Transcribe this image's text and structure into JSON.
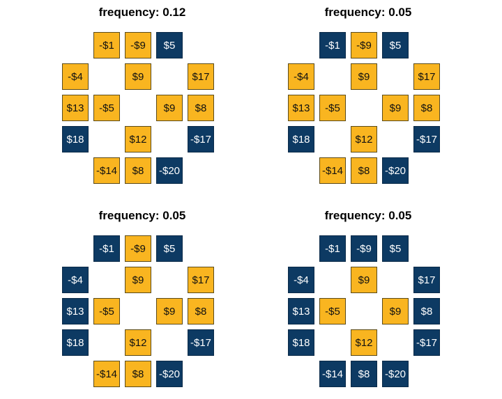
{
  "colors": {
    "yellow": "#f9b520",
    "blue": "#0d3a63"
  },
  "panels": [
    {
      "title": "frequency: 0.12",
      "cells": [
        {
          "row": 0,
          "col": 1,
          "label": "-$1",
          "color": "yellow"
        },
        {
          "row": 0,
          "col": 2,
          "label": "-$9",
          "color": "yellow"
        },
        {
          "row": 0,
          "col": 3,
          "label": "$5",
          "color": "blue"
        },
        {
          "row": 1,
          "col": 0,
          "label": "-$4",
          "color": "yellow"
        },
        {
          "row": 1,
          "col": 2,
          "label": "$9",
          "color": "yellow"
        },
        {
          "row": 1,
          "col": 4,
          "label": "$17",
          "color": "yellow"
        },
        {
          "row": 2,
          "col": 0,
          "label": "$13",
          "color": "yellow"
        },
        {
          "row": 2,
          "col": 1,
          "label": "-$5",
          "color": "yellow"
        },
        {
          "row": 2,
          "col": 3,
          "label": "$9",
          "color": "yellow"
        },
        {
          "row": 2,
          "col": 4,
          "label": "$8",
          "color": "yellow"
        },
        {
          "row": 3,
          "col": 0,
          "label": "$18",
          "color": "blue"
        },
        {
          "row": 3,
          "col": 2,
          "label": "$12",
          "color": "yellow"
        },
        {
          "row": 3,
          "col": 4,
          "label": "-$17",
          "color": "blue"
        },
        {
          "row": 4,
          "col": 1,
          "label": "-$14",
          "color": "yellow"
        },
        {
          "row": 4,
          "col": 2,
          "label": "$8",
          "color": "yellow"
        },
        {
          "row": 4,
          "col": 3,
          "label": "-$20",
          "color": "blue"
        }
      ]
    },
    {
      "title": "frequency: 0.05",
      "cells": [
        {
          "row": 0,
          "col": 1,
          "label": "-$1",
          "color": "blue"
        },
        {
          "row": 0,
          "col": 2,
          "label": "-$9",
          "color": "yellow"
        },
        {
          "row": 0,
          "col": 3,
          "label": "$5",
          "color": "blue"
        },
        {
          "row": 1,
          "col": 0,
          "label": "-$4",
          "color": "yellow"
        },
        {
          "row": 1,
          "col": 2,
          "label": "$9",
          "color": "yellow"
        },
        {
          "row": 1,
          "col": 4,
          "label": "$17",
          "color": "yellow"
        },
        {
          "row": 2,
          "col": 0,
          "label": "$13",
          "color": "yellow"
        },
        {
          "row": 2,
          "col": 1,
          "label": "-$5",
          "color": "yellow"
        },
        {
          "row": 2,
          "col": 3,
          "label": "$9",
          "color": "yellow"
        },
        {
          "row": 2,
          "col": 4,
          "label": "$8",
          "color": "yellow"
        },
        {
          "row": 3,
          "col": 0,
          "label": "$18",
          "color": "blue"
        },
        {
          "row": 3,
          "col": 2,
          "label": "$12",
          "color": "yellow"
        },
        {
          "row": 3,
          "col": 4,
          "label": "-$17",
          "color": "blue"
        },
        {
          "row": 4,
          "col": 1,
          "label": "-$14",
          "color": "yellow"
        },
        {
          "row": 4,
          "col": 2,
          "label": "$8",
          "color": "yellow"
        },
        {
          "row": 4,
          "col": 3,
          "label": "-$20",
          "color": "blue"
        }
      ]
    },
    {
      "title": "frequency: 0.05",
      "cells": [
        {
          "row": 0,
          "col": 1,
          "label": "-$1",
          "color": "blue"
        },
        {
          "row": 0,
          "col": 2,
          "label": "-$9",
          "color": "yellow"
        },
        {
          "row": 0,
          "col": 3,
          "label": "$5",
          "color": "blue"
        },
        {
          "row": 1,
          "col": 0,
          "label": "-$4",
          "color": "blue"
        },
        {
          "row": 1,
          "col": 2,
          "label": "$9",
          "color": "yellow"
        },
        {
          "row": 1,
          "col": 4,
          "label": "$17",
          "color": "yellow"
        },
        {
          "row": 2,
          "col": 0,
          "label": "$13",
          "color": "blue"
        },
        {
          "row": 2,
          "col": 1,
          "label": "-$5",
          "color": "yellow"
        },
        {
          "row": 2,
          "col": 3,
          "label": "$9",
          "color": "yellow"
        },
        {
          "row": 2,
          "col": 4,
          "label": "$8",
          "color": "yellow"
        },
        {
          "row": 3,
          "col": 0,
          "label": "$18",
          "color": "blue"
        },
        {
          "row": 3,
          "col": 2,
          "label": "$12",
          "color": "yellow"
        },
        {
          "row": 3,
          "col": 4,
          "label": "-$17",
          "color": "blue"
        },
        {
          "row": 4,
          "col": 1,
          "label": "-$14",
          "color": "yellow"
        },
        {
          "row": 4,
          "col": 2,
          "label": "$8",
          "color": "yellow"
        },
        {
          "row": 4,
          "col": 3,
          "label": "-$20",
          "color": "blue"
        }
      ]
    },
    {
      "title": "frequency: 0.05",
      "cells": [
        {
          "row": 0,
          "col": 1,
          "label": "-$1",
          "color": "blue"
        },
        {
          "row": 0,
          "col": 2,
          "label": "-$9",
          "color": "blue"
        },
        {
          "row": 0,
          "col": 3,
          "label": "$5",
          "color": "blue"
        },
        {
          "row": 1,
          "col": 0,
          "label": "-$4",
          "color": "blue"
        },
        {
          "row": 1,
          "col": 2,
          "label": "$9",
          "color": "yellow"
        },
        {
          "row": 1,
          "col": 4,
          "label": "$17",
          "color": "blue"
        },
        {
          "row": 2,
          "col": 0,
          "label": "$13",
          "color": "blue"
        },
        {
          "row": 2,
          "col": 1,
          "label": "-$5",
          "color": "yellow"
        },
        {
          "row": 2,
          "col": 3,
          "label": "$9",
          "color": "yellow"
        },
        {
          "row": 2,
          "col": 4,
          "label": "$8",
          "color": "blue"
        },
        {
          "row": 3,
          "col": 0,
          "label": "$18",
          "color": "blue"
        },
        {
          "row": 3,
          "col": 2,
          "label": "$12",
          "color": "yellow"
        },
        {
          "row": 3,
          "col": 4,
          "label": "-$17",
          "color": "blue"
        },
        {
          "row": 4,
          "col": 1,
          "label": "-$14",
          "color": "blue"
        },
        {
          "row": 4,
          "col": 2,
          "label": "$8",
          "color": "blue"
        },
        {
          "row": 4,
          "col": 3,
          "label": "-$20",
          "color": "blue"
        }
      ]
    }
  ]
}
